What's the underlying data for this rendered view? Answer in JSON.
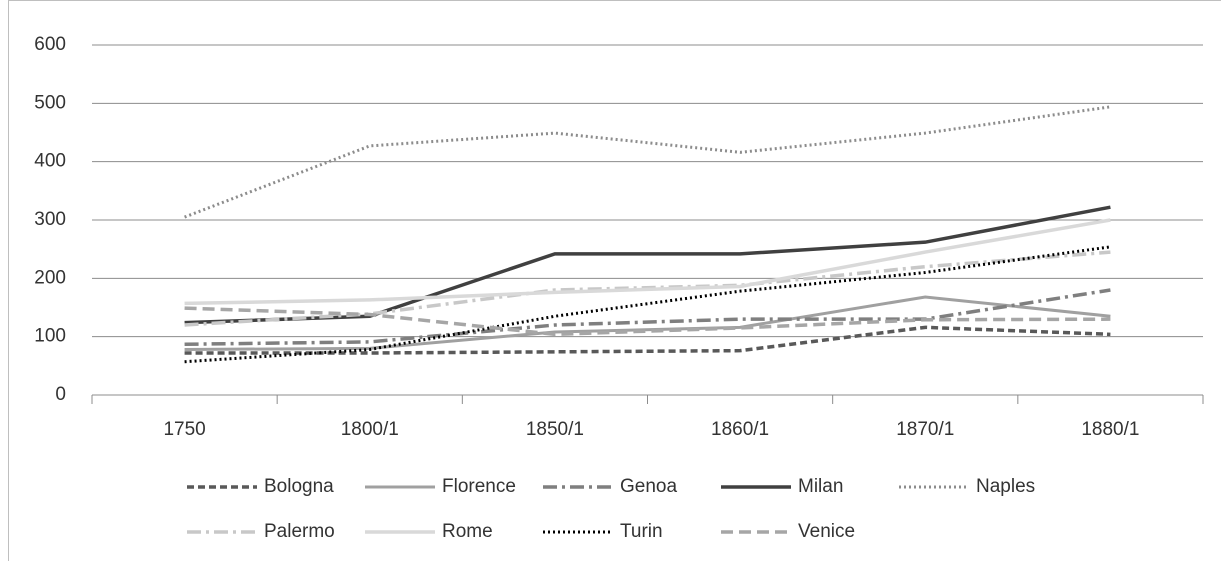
{
  "chart_data": {
    "type": "line",
    "categories": [
      "1750",
      "1800/1",
      "1850/1",
      "1860/1",
      "1870/1",
      "1880/1"
    ],
    "ylim": [
      0,
      600
    ],
    "yticks": [
      0,
      100,
      200,
      300,
      400,
      500,
      600
    ],
    "grid": true,
    "series": [
      {
        "name": "Bologna",
        "color": "#595959",
        "dash": "7,4",
        "width": 3.5,
        "values": [
          72,
          72,
          74,
          76,
          116,
          104
        ]
      },
      {
        "name": "Florence",
        "color": "#a0a0a0",
        "dash": "",
        "width": 3,
        "values": [
          78,
          80,
          108,
          116,
          168,
          135
        ]
      },
      {
        "name": "Genoa",
        "color": "#7f7f7f",
        "dash": "14,5,3,5",
        "width": 3.5,
        "values": [
          87,
          91,
          120,
          130,
          130,
          180
        ]
      },
      {
        "name": "Milan",
        "color": "#404040",
        "dash": "",
        "width": 3.5,
        "values": [
          124,
          135,
          242,
          242,
          262,
          322
        ]
      },
      {
        "name": "Naples",
        "color": "#8c8c8c",
        "dash": "2,3",
        "width": 3,
        "values": [
          305,
          427,
          449,
          416,
          449,
          494
        ]
      },
      {
        "name": "Palermo",
        "color": "#c8c8c8",
        "dash": "14,5,3,5",
        "width": 3.5,
        "values": [
          120,
          139,
          180,
          188,
          220,
          245
        ]
      },
      {
        "name": "Rome",
        "color": "#d9d9d9",
        "dash": "",
        "width": 3.5,
        "values": [
          157,
          163,
          176,
          186,
          245,
          300
        ]
      },
      {
        "name": "Turin",
        "color": "#000000",
        "dash": "2,3",
        "width": 3,
        "values": [
          57,
          78,
          135,
          178,
          210,
          254
        ]
      },
      {
        "name": "Venice",
        "color": "#a6a6a6",
        "dash": "12,6",
        "width": 3.5,
        "values": [
          149,
          138,
          104,
          115,
          129,
          130
        ]
      }
    ]
  }
}
